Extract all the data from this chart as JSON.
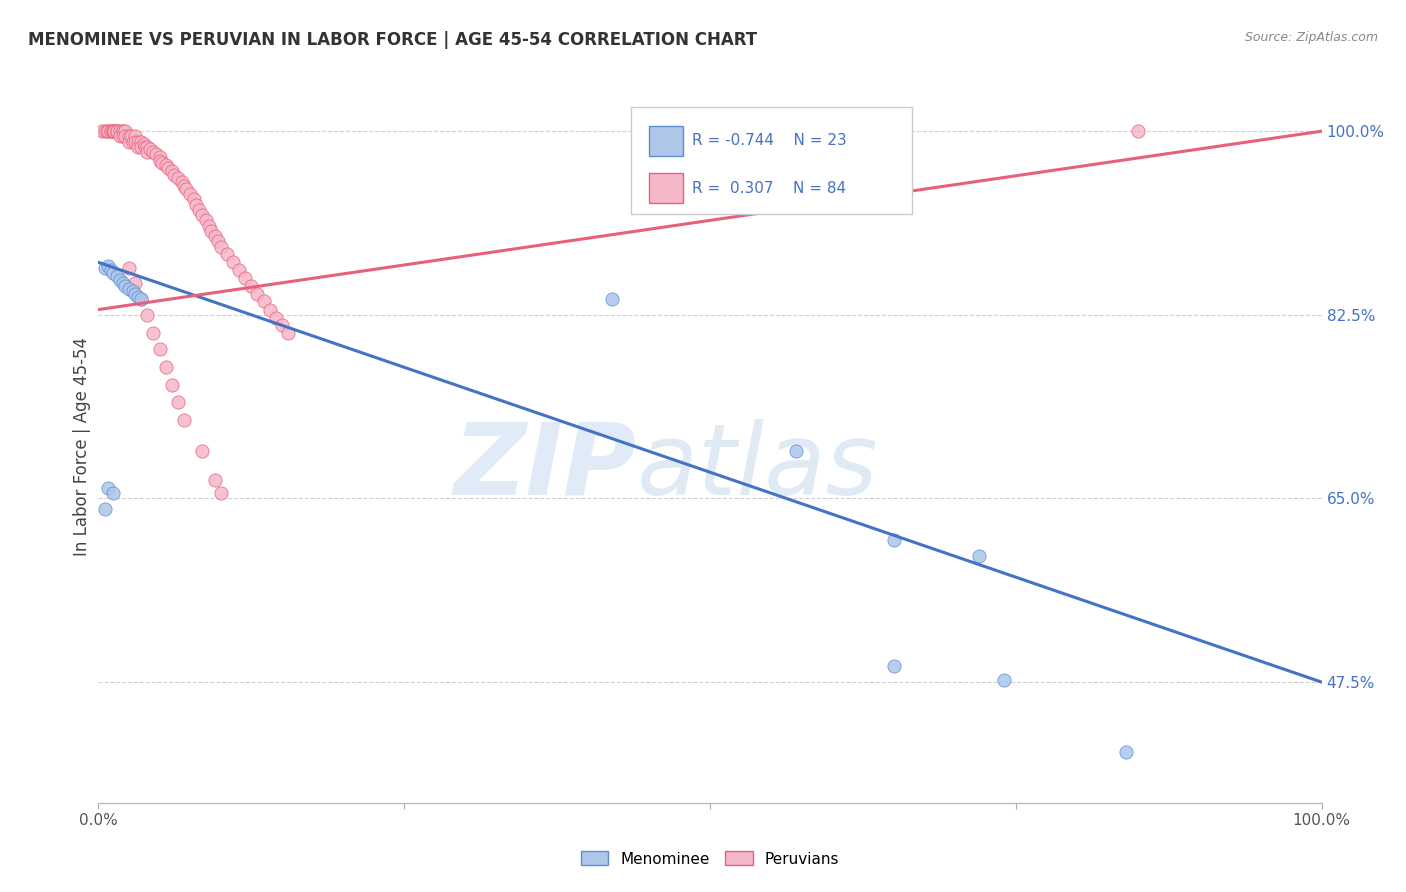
{
  "title": "MENOMINEE VS PERUVIAN IN LABOR FORCE | AGE 45-54 CORRELATION CHART",
  "source": "Source: ZipAtlas.com",
  "ylabel": "In Labor Force | Age 45-54",
  "legend_label1": "Menominee",
  "legend_label2": "Peruvians",
  "R1": -0.744,
  "N1": 23,
  "R2": 0.307,
  "N2": 84,
  "color_men_fill": "#adc6ea",
  "color_men_edge": "#5a8fd4",
  "color_per_fill": "#f5b8c8",
  "color_per_edge": "#e8607a",
  "color_trendline1": "#4472c4",
  "color_trendline2": "#e8607a",
  "ytick_labels": [
    "47.5%",
    "65.0%",
    "82.5%",
    "100.0%"
  ],
  "ytick_values": [
    0.475,
    0.65,
    0.825,
    1.0
  ],
  "xmin": 0.0,
  "xmax": 1.0,
  "ymin": 0.36,
  "ymax": 1.04,
  "menominee_x": [
    0.005,
    0.008,
    0.01,
    0.012,
    0.015,
    0.018,
    0.02,
    0.022,
    0.025,
    0.028,
    0.03,
    0.032,
    0.035,
    0.005,
    0.008,
    0.012,
    0.42,
    0.57,
    0.65,
    0.72,
    0.65,
    0.74,
    0.84
  ],
  "menominee_y": [
    0.87,
    0.872,
    0.868,
    0.865,
    0.862,
    0.858,
    0.855,
    0.852,
    0.85,
    0.848,
    0.845,
    0.842,
    0.84,
    0.64,
    0.66,
    0.655,
    0.84,
    0.695,
    0.61,
    0.595,
    0.49,
    0.477,
    0.408
  ],
  "peruvians_x": [
    0.003,
    0.005,
    0.007,
    0.008,
    0.01,
    0.01,
    0.012,
    0.012,
    0.013,
    0.013,
    0.015,
    0.015,
    0.015,
    0.018,
    0.018,
    0.02,
    0.02,
    0.02,
    0.022,
    0.022,
    0.025,
    0.025,
    0.027,
    0.028,
    0.03,
    0.03,
    0.032,
    0.032,
    0.035,
    0.035,
    0.037,
    0.038,
    0.04,
    0.04,
    0.042,
    0.045,
    0.047,
    0.05,
    0.05,
    0.052,
    0.055,
    0.057,
    0.06,
    0.062,
    0.065,
    0.068,
    0.07,
    0.072,
    0.075,
    0.078,
    0.08,
    0.082,
    0.085,
    0.088,
    0.09,
    0.092,
    0.095,
    0.098,
    0.1,
    0.105,
    0.11,
    0.115,
    0.12,
    0.125,
    0.13,
    0.135,
    0.14,
    0.145,
    0.15,
    0.155,
    0.025,
    0.03,
    0.035,
    0.04,
    0.045,
    0.05,
    0.055,
    0.06,
    0.065,
    0.07,
    0.085,
    0.095,
    0.1,
    0.85
  ],
  "peruvians_y": [
    1.0,
    1.0,
    1.0,
    1.0,
    1.0,
    1.0,
    1.0,
    1.0,
    1.0,
    1.0,
    1.0,
    1.0,
    1.0,
    1.0,
    0.995,
    1.0,
    1.0,
    0.995,
    1.0,
    0.995,
    0.995,
    0.99,
    0.995,
    0.99,
    0.995,
    0.99,
    0.99,
    0.985,
    0.99,
    0.985,
    0.988,
    0.985,
    0.985,
    0.98,
    0.983,
    0.98,
    0.978,
    0.975,
    0.972,
    0.97,
    0.968,
    0.965,
    0.962,
    0.958,
    0.955,
    0.952,
    0.948,
    0.945,
    0.94,
    0.935,
    0.93,
    0.925,
    0.92,
    0.915,
    0.91,
    0.905,
    0.9,
    0.895,
    0.89,
    0.883,
    0.875,
    0.868,
    0.86,
    0.852,
    0.845,
    0.838,
    0.83,
    0.822,
    0.815,
    0.808,
    0.87,
    0.855,
    0.84,
    0.825,
    0.808,
    0.792,
    0.775,
    0.758,
    0.742,
    0.725,
    0.695,
    0.668,
    0.655,
    1.0
  ]
}
